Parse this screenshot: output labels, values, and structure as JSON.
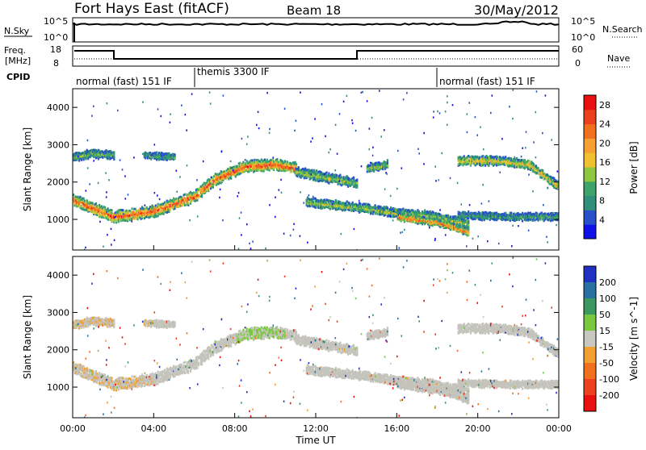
{
  "header": {
    "title": "Fort Hays East (fitACF)",
    "beam": "Beam 18",
    "date": "30/May/2012"
  },
  "noise_panel": {
    "left_label": "N.Sky",
    "right_label": "N.Search",
    "left_ticks": [
      "10^5",
      "10^0"
    ],
    "right_ticks": [
      "10^5",
      "10^0"
    ]
  },
  "freq_panel": {
    "left_label_line1": "Freq.",
    "left_label_line2": "[MHz]",
    "left_ticks": [
      "18",
      "8"
    ],
    "right_label": "Nave",
    "right_ticks": [
      "60",
      "0"
    ]
  },
  "cpid": {
    "label": "CPID",
    "segments": [
      {
        "text": "normal (fast) 151 IF",
        "start_hour": 0.0,
        "end_hour": 6.0
      },
      {
        "text": "themis 3300 IF",
        "start_hour": 6.0,
        "end_hour": 18.0
      },
      {
        "text": "normal (fast) 151 IF",
        "start_hour": 18.0,
        "end_hour": 24.0
      }
    ]
  },
  "chart_data": [
    {
      "type": "heatmap",
      "name": "Power",
      "xlabel": "Time UT",
      "ylabel": "Slant Range [km]",
      "xlim": [
        0,
        24
      ],
      "ylim": [
        180,
        4500
      ],
      "y_ticks": [
        1000,
        2000,
        3000,
        4000
      ],
      "colorbar": {
        "label": "Power [dB]",
        "ticks": [
          4,
          8,
          12,
          16,
          20,
          24,
          28
        ],
        "range": [
          0,
          30
        ],
        "colors": [
          "#1010e8",
          "#2850c8",
          "#2f8f7a",
          "#3da36a",
          "#8fc840",
          "#f0c030",
          "#f5a030",
          "#f07020",
          "#ea4020",
          "#e81010"
        ]
      },
      "echo_bands": [
        {
          "t": [
            0,
            2,
            4,
            6,
            7,
            8.5,
            10,
            11
          ],
          "range": [
            1550,
            1100,
            1250,
            1650,
            2100,
            2450,
            2500,
            2400
          ],
          "width": 260,
          "power": 26
        },
        {
          "t": [
            0,
            1,
            2
          ],
          "range": [
            2700,
            2800,
            2750
          ],
          "width": 180,
          "power": 12
        },
        {
          "t": [
            3.5,
            5
          ],
          "range": [
            2750,
            2700
          ],
          "width": 140,
          "power": 10
        },
        {
          "t": [
            11,
            12.5,
            14
          ],
          "range": [
            2300,
            2150,
            2000
          ],
          "width": 220,
          "power": 14
        },
        {
          "t": [
            11.5,
            14,
            16,
            18,
            19.5
          ],
          "range": [
            1500,
            1350,
            1200,
            1100,
            900
          ],
          "width": 200,
          "power": 14
        },
        {
          "t": [
            16,
            18,
            19.5
          ],
          "range": [
            1100,
            950,
            700
          ],
          "width": 160,
          "power": 24
        },
        {
          "t": [
            19,
            21,
            22.5,
            24
          ],
          "range": [
            2600,
            2600,
            2500,
            1900
          ],
          "width": 200,
          "power": 18
        },
        {
          "t": [
            19,
            21,
            24
          ],
          "range": [
            1150,
            1100,
            1100
          ],
          "width": 160,
          "power": 10
        },
        {
          "t": [
            14.5,
            15.5
          ],
          "range": [
            2400,
            2500
          ],
          "width": 180,
          "power": 14
        }
      ]
    },
    {
      "type": "heatmap",
      "name": "Velocity",
      "xlabel": "Time UT",
      "ylabel": "Slant Range [km]",
      "xlim": [
        0,
        24
      ],
      "ylim": [
        180,
        4500
      ],
      "y_ticks": [
        1000,
        2000,
        3000,
        4000
      ],
      "x_ticks": [
        "00:00",
        "04:00",
        "08:00",
        "12:00",
        "16:00",
        "20:00",
        "00:00"
      ],
      "colorbar": {
        "label": "Velocity [m s^-1]",
        "ticks": [
          200,
          100,
          50,
          15,
          -15,
          -50,
          -100,
          -200
        ],
        "colors": [
          "#2030c0",
          "#2a70a0",
          "#3a9860",
          "#78c840",
          "#c8c8c0",
          "#f0a030",
          "#f07020",
          "#ec4020",
          "#e81010"
        ]
      },
      "ground_scatter_color": "#c4c4bc",
      "notes": "Mostly ground scatter (grey) with orange/negative patches at early hours and green near 08:00-10:00 at 2400 km"
    }
  ]
}
